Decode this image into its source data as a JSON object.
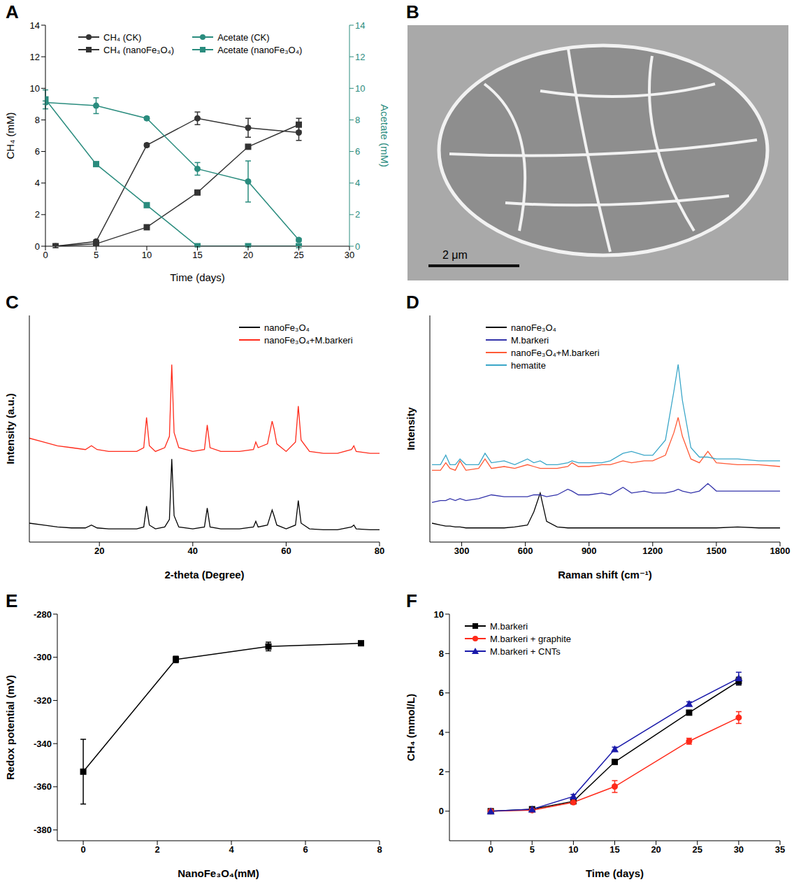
{
  "chart_data": [
    {
      "panel": "A",
      "type": "line",
      "xlabel": "Time (days)",
      "ylabel": "CH₄ (mM)",
      "y2label": "Acetate (mM)",
      "xlim": [
        0,
        30
      ],
      "xticks": [
        0,
        5,
        10,
        15,
        20,
        25,
        30
      ],
      "ylim": [
        0,
        14
      ],
      "yticks": [
        0,
        2,
        4,
        6,
        8,
        10,
        12,
        14
      ],
      "y2lim": [
        0,
        14
      ],
      "y2ticks": [
        0,
        2,
        4,
        6,
        8,
        10,
        12,
        14
      ],
      "legend": "top",
      "series": [
        {
          "name": "CH₄ (CK)",
          "color": "#333333",
          "marker": "circle",
          "x": [
            1,
            5,
            10,
            15,
            20,
            25
          ],
          "values": [
            0,
            0.3,
            6.4,
            8.1,
            7.5,
            7.2
          ],
          "errors": [
            0.1,
            0.1,
            0.1,
            0.4,
            0.6,
            0.5
          ]
        },
        {
          "name": "CH₄ (nanoFe₃O₄)",
          "color": "#333333",
          "marker": "square",
          "x": [
            1,
            5,
            10,
            15,
            20,
            25
          ],
          "values": [
            0,
            0.15,
            1.2,
            3.4,
            6.3,
            7.7
          ],
          "errors": [
            0.1,
            0.1,
            0.1,
            0.1,
            0.1,
            0.4
          ]
        },
        {
          "name": "Acetate (CK)",
          "color": "#2a8c7e",
          "marker": "circle",
          "axis": "y2",
          "x": [
            0,
            5,
            10,
            15,
            20,
            25
          ],
          "values": [
            9.1,
            8.9,
            8.1,
            4.9,
            4.1,
            0.4
          ],
          "errors": [
            0.1,
            0.5,
            0.1,
            0.4,
            1.3,
            0.1
          ]
        },
        {
          "name": "Acetate (nanoFe₃O₄)",
          "color": "#2a8c7e",
          "marker": "square",
          "axis": "y2",
          "x": [
            0,
            5,
            10,
            15,
            20,
            25
          ],
          "values": [
            9.3,
            5.2,
            2.6,
            0,
            0,
            0
          ],
          "errors": [
            0.6,
            0.1,
            0.1,
            0.05,
            0.05,
            0.1
          ]
        }
      ]
    },
    {
      "panel": "B",
      "type": "image",
      "scale_bar": "2 μm"
    },
    {
      "panel": "C",
      "type": "line",
      "xlabel": "2-theta (Degree)",
      "ylabel": "Intensity (a.u.)",
      "xlim": [
        5,
        80
      ],
      "xticks": [
        20,
        40,
        60,
        80
      ],
      "ylim": [
        0,
        120
      ],
      "tick_labels": "x",
      "legend": "top-right",
      "x": [
        5,
        8,
        11,
        14,
        17,
        18.3,
        19.5,
        22,
        25,
        28,
        29.5,
        30.1,
        30.7,
        32,
        34,
        35,
        35.5,
        36,
        37,
        40,
        42.5,
        43.1,
        43.7,
        46,
        50,
        53,
        53.5,
        54,
        56,
        57,
        57.4,
        58,
        60,
        62,
        62.6,
        63.2,
        65,
        68,
        71,
        74,
        74.5,
        75,
        78,
        80
      ],
      "series": [
        {
          "name": "nanoFe₃O₄",
          "color": "#000000",
          "values": [
            10,
            9,
            8,
            7.5,
            7.5,
            9,
            7.5,
            7,
            7,
            7,
            8,
            19,
            9,
            7,
            8,
            12,
            44,
            14,
            8,
            7,
            8,
            18,
            8,
            7,
            7,
            8,
            11,
            8,
            9,
            17,
            14,
            9,
            7,
            9,
            22,
            10,
            7,
            6.5,
            6.5,
            8,
            9,
            7,
            6.5,
            6.5
          ]
        },
        {
          "name": "nanoFe₃O₄+M.barkeri",
          "color": "#ff2a1a",
          "values": [
            55,
            53,
            51,
            50,
            49,
            51,
            49,
            48,
            48,
            48,
            50,
            66,
            51,
            48,
            50,
            56,
            94,
            58,
            50,
            48,
            49,
            62,
            50,
            48,
            48,
            49,
            53,
            50,
            52,
            64,
            60,
            52,
            48,
            53,
            72,
            54,
            48,
            47,
            47,
            49,
            51,
            48,
            47,
            47
          ]
        }
      ]
    },
    {
      "panel": "D",
      "type": "line",
      "xlabel": "Raman shift (cm⁻¹)",
      "ylabel": "Intensity",
      "xlim": [
        150,
        1800
      ],
      "xticks": [
        300,
        600,
        900,
        1200,
        1500,
        1800
      ],
      "ylim": [
        0,
        120
      ],
      "tick_labels": "x",
      "legend": "top-left",
      "x": [
        160,
        200,
        225,
        245,
        270,
        292,
        320,
        380,
        410,
        440,
        500,
        550,
        610,
        640,
        670,
        700,
        750,
        800,
        820,
        850,
        900,
        960,
        1000,
        1060,
        1100,
        1160,
        1200,
        1260,
        1300,
        1320,
        1340,
        1380,
        1420,
        1460,
        1500,
        1600,
        1700,
        1800
      ],
      "series": [
        {
          "name": "nanoFe₃O₄",
          "color": "#000000",
          "values": [
            10,
            9,
            8.5,
            8.5,
            8,
            8,
            7.5,
            7.5,
            7.5,
            7.5,
            7.5,
            8,
            9,
            16,
            26,
            11,
            8,
            7.5,
            7.5,
            7.5,
            7.5,
            7.5,
            7.5,
            7.5,
            7.5,
            7.5,
            7.5,
            7.5,
            7.5,
            7.5,
            7.5,
            7.5,
            7.5,
            7.5,
            7.5,
            8,
            7.5,
            7.5
          ]
        },
        {
          "name": "M.barkeri",
          "color": "#3333aa",
          "values": [
            21,
            22,
            22,
            23,
            22,
            23,
            22,
            23,
            24,
            25,
            24,
            24,
            24,
            25,
            25,
            24,
            25,
            28,
            27,
            25,
            25,
            26,
            25,
            29,
            26,
            27,
            26,
            26,
            27,
            28,
            27,
            26,
            27,
            31,
            27,
            27,
            27,
            27
          ]
        },
        {
          "name": "nanoFe₃O₄+M.barkeri",
          "color": "#ff5a36",
          "values": [
            38,
            38,
            42,
            39,
            38,
            43,
            38,
            39,
            44,
            39,
            40,
            39,
            41,
            40,
            39,
            39,
            39,
            40,
            42,
            40,
            40,
            41,
            41,
            43,
            42,
            43,
            43,
            46,
            58,
            66,
            56,
            44,
            42,
            48,
            42,
            41,
            41,
            40
          ]
        },
        {
          "name": "hematite",
          "color": "#3aa6c8",
          "values": [
            41,
            41,
            46,
            41,
            41,
            44,
            41,
            41,
            47,
            42,
            43,
            41,
            44,
            42,
            43,
            41,
            41,
            42,
            43,
            42,
            42,
            42,
            43,
            47,
            48,
            46,
            46,
            54,
            80,
            94,
            75,
            50,
            45,
            45,
            44,
            44,
            43,
            43
          ]
        }
      ]
    },
    {
      "panel": "E",
      "type": "line",
      "xlabel": "NanoFe₃O₄(mM)",
      "ylabel": "Redox potential (mV)",
      "xlim": [
        -0.7,
        8
      ],
      "xticks": [
        0,
        2,
        4,
        6,
        8
      ],
      "ylim": [
        -385,
        -280
      ],
      "yticks": [
        -380,
        -360,
        -340,
        -320,
        -300,
        -280
      ],
      "x": [
        0,
        2.5,
        5,
        7.5
      ],
      "values": [
        -353,
        -301,
        -295,
        -293.5
      ],
      "errors": [
        15,
        1.5,
        2,
        1
      ],
      "color": "#000000",
      "marker": "square"
    },
    {
      "panel": "F",
      "type": "line",
      "xlabel": "Time (days)",
      "ylabel": "CH₄ (mmol/L)",
      "xlim": [
        -5,
        35
      ],
      "xticks": [
        0,
        5,
        10,
        15,
        20,
        25,
        30,
        35
      ],
      "ylim": [
        -1.5,
        10
      ],
      "yticks": [
        0,
        2,
        4,
        6,
        8,
        10
      ],
      "legend": "top-left",
      "x": [
        0,
        5,
        10,
        15,
        24,
        30
      ],
      "series": [
        {
          "name": "M.barkeri",
          "color": "#000000",
          "marker": "square",
          "values": [
            0,
            0.1,
            0.5,
            2.5,
            5.0,
            6.6
          ],
          "errors": [
            0,
            0,
            0.05,
            0.1,
            0.1,
            0.2
          ]
        },
        {
          "name": "M.barkeri + graphite",
          "color": "#ff2a1a",
          "marker": "circle",
          "values": [
            0,
            0.05,
            0.45,
            1.25,
            3.55,
            4.75
          ],
          "errors": [
            0,
            0,
            0.05,
            0.3,
            0.15,
            0.3
          ]
        },
        {
          "name": "M.barkeri + CNTs",
          "color": "#1a1aaa",
          "marker": "triangle",
          "values": [
            0,
            0.1,
            0.75,
            3.15,
            5.45,
            6.75
          ],
          "errors": [
            0,
            0,
            0.1,
            0.1,
            0.1,
            0.3
          ]
        }
      ]
    }
  ]
}
